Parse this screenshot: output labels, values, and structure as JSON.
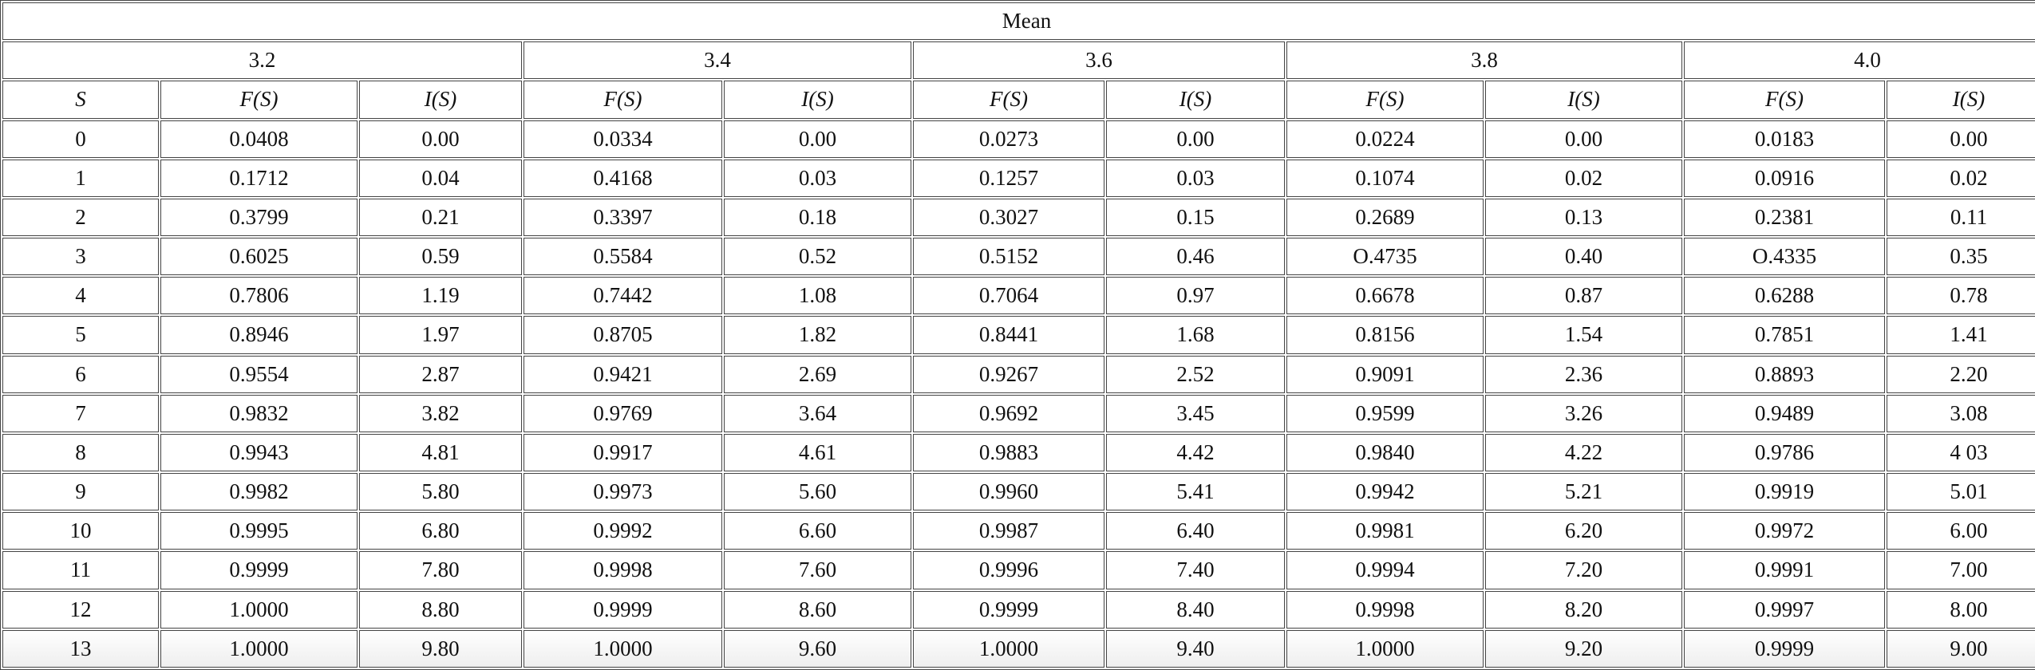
{
  "header": {
    "title": "Mean",
    "groups": [
      "3.2",
      "3.4",
      "3.6",
      "3.8",
      "4.0"
    ],
    "columns": [
      "S",
      "F(S)",
      "I(S)",
      "F(S)",
      "I(S)",
      "F(S)",
      "I(S)",
      "F(S)",
      "I(S)",
      "F(S)",
      "I(S)"
    ]
  },
  "table": {
    "rows": [
      [
        "0",
        "0.0408",
        "0.00",
        "0.0334",
        "0.00",
        "0.0273",
        "0.00",
        "0.0224",
        "0.00",
        "0.0183",
        "0.00"
      ],
      [
        "1",
        "0.1712",
        "0.04",
        "0.4168",
        "0.03",
        "0.1257",
        "0.03",
        "0.1074",
        "0.02",
        "0.0916",
        "0.02"
      ],
      [
        "2",
        "0.3799",
        "0.21",
        "0.3397",
        "0.18",
        "0.3027",
        "0.15",
        "0.2689",
        "0.13",
        "0.2381",
        "0.11"
      ],
      [
        "3",
        "0.6025",
        "0.59",
        "0.5584",
        "0.52",
        "0.5152",
        "0.46",
        "O.4735",
        "0.40",
        "O.4335",
        "0.35"
      ],
      [
        "4",
        "0.7806",
        "1.19",
        "0.7442",
        "1.08",
        "0.7064",
        "0.97",
        "0.6678",
        "0.87",
        "0.6288",
        "0.78"
      ],
      [
        "5",
        "0.8946",
        "1.97",
        "0.8705",
        "1.82",
        "0.8441",
        "1.68",
        "0.8156",
        "1.54",
        "0.7851",
        "1.41"
      ],
      [
        "6",
        "0.9554",
        "2.87",
        "0.9421",
        "2.69",
        "0.9267",
        "2.52",
        "0.9091",
        "2.36",
        "0.8893",
        "2.20"
      ],
      [
        "7",
        "0.9832",
        "3.82",
        "0.9769",
        "3.64",
        "0.9692",
        "3.45",
        "0.9599",
        "3.26",
        "0.9489",
        "3.08"
      ],
      [
        "8",
        "0.9943",
        "4.81",
        "0.9917",
        "4.61",
        "0.9883",
        "4.42",
        "0.9840",
        "4.22",
        "0.9786",
        "4 03"
      ],
      [
        "9",
        "0.9982",
        "5.80",
        "0.9973",
        "5.60",
        "0.9960",
        "5.41",
        "0.9942",
        "5.21",
        "0.9919",
        "5.01"
      ],
      [
        "10",
        "0.9995",
        "6.80",
        "0.9992",
        "6.60",
        "0.9987",
        "6.40",
        "0.9981",
        "6.20",
        "0.9972",
        "6.00"
      ],
      [
        "11",
        "0.9999",
        "7.80",
        "0.9998",
        "7.60",
        "0.9996",
        "7.40",
        "0.9994",
        "7.20",
        "0.9991",
        "7.00"
      ],
      [
        "12",
        "1.0000",
        "8.80",
        "0.9999",
        "8.60",
        "0.9999",
        "8.40",
        "0.9998",
        "8.20",
        "0.9997",
        "8.00"
      ],
      [
        "13",
        "1.0000",
        "9.80",
        "1.0000",
        "9.60",
        "1.0000",
        "9.40",
        "1.0000",
        "9.20",
        "0.9999",
        "9.00"
      ]
    ]
  }
}
